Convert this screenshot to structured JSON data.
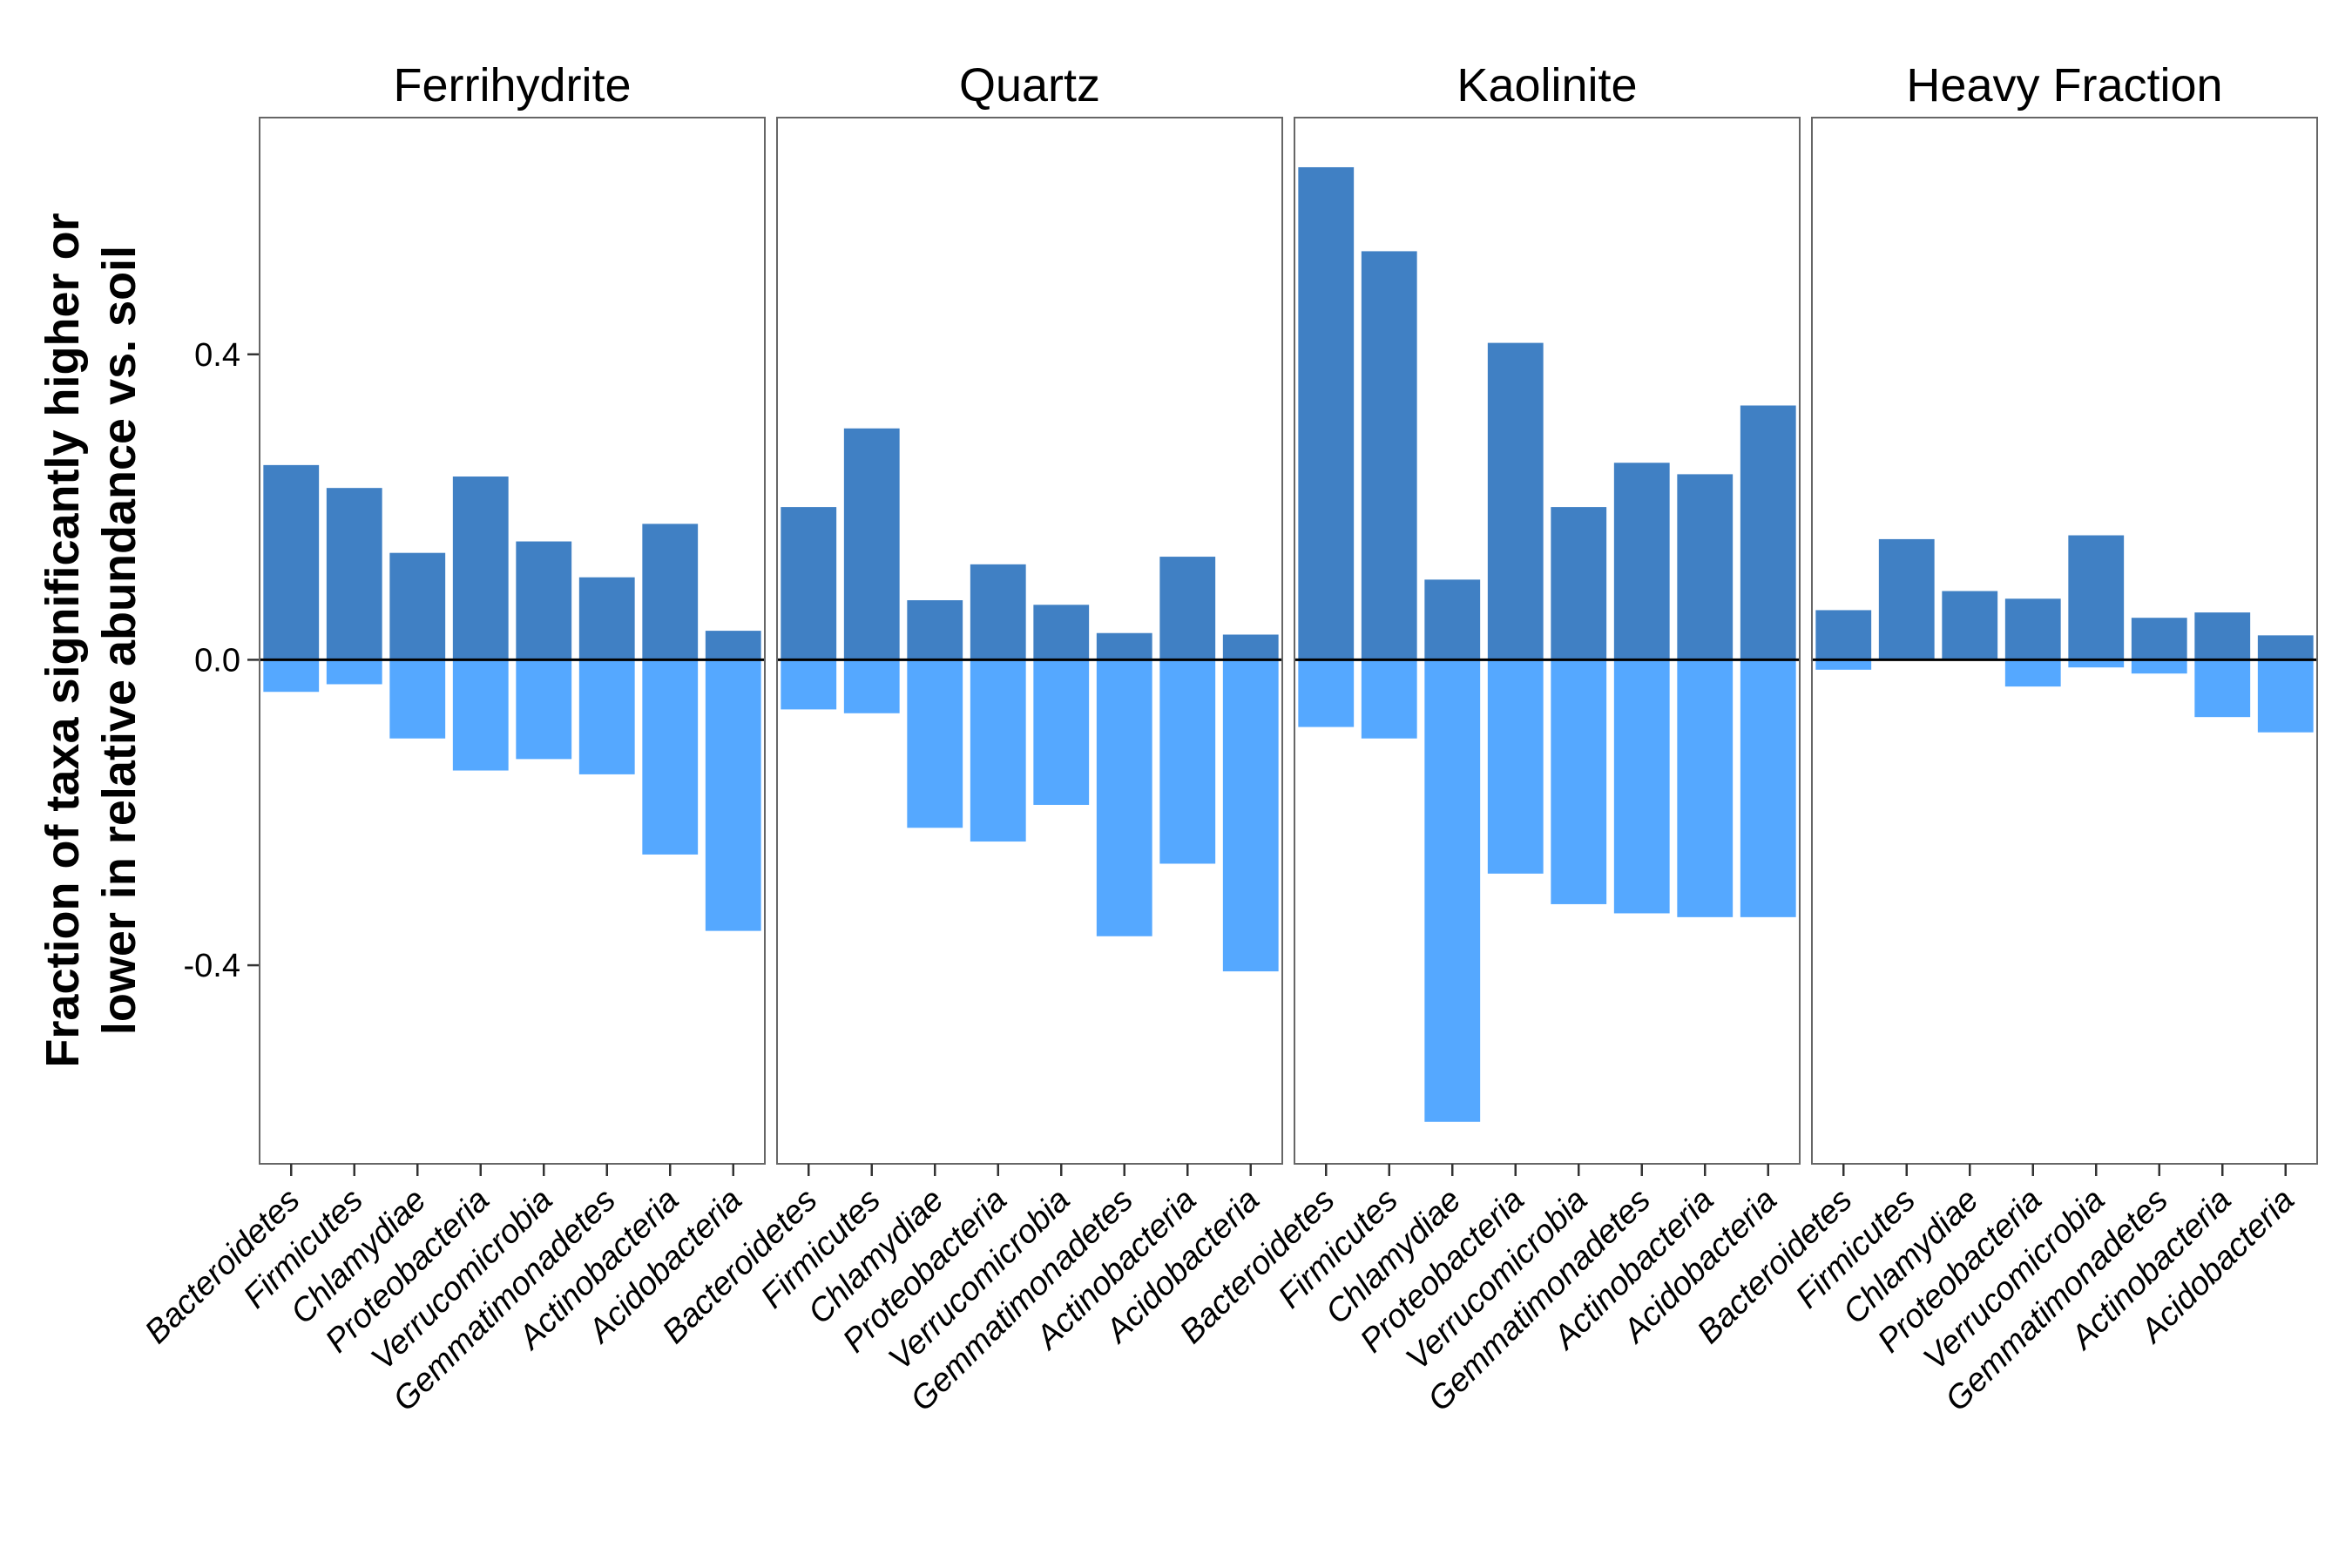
{
  "chart_data": {
    "type": "bar",
    "ylabel_lines": [
      "Fraction of taxa significantly higher or",
      "lower in relative abundance vs. soil"
    ],
    "xlabel": "",
    "ylim": [
      -0.66,
      0.71
    ],
    "yticks": [
      0.4,
      0.0,
      -0.4
    ],
    "ytick_labels": [
      "0.4",
      "0.0",
      "-0.4"
    ],
    "grid": false,
    "legend": "none",
    "colors": {
      "higher": "#4080C4",
      "lower": "#55A8FF"
    },
    "categories": [
      "Bacteroidetes",
      "Firmicutes",
      "Chlamydiae",
      "Proteobacteria",
      "Verrucomicrobia",
      "Gemmatimonadetes",
      "Actinobacteria",
      "Acidobacteria"
    ],
    "panels": [
      {
        "title": "Ferrihydrite",
        "higher": [
          0.255,
          0.225,
          0.14,
          0.24,
          0.155,
          0.108,
          0.178,
          0.038
        ],
        "lower": [
          -0.042,
          -0.032,
          -0.103,
          -0.145,
          -0.13,
          -0.15,
          -0.255,
          -0.355
        ]
      },
      {
        "title": "Quartz",
        "higher": [
          0.2,
          0.303,
          0.078,
          0.125,
          0.072,
          0.035,
          0.135,
          0.033
        ],
        "lower": [
          -0.065,
          -0.07,
          -0.22,
          -0.238,
          -0.19,
          -0.362,
          -0.267,
          -0.408
        ]
      },
      {
        "title": "Kaolinite",
        "higher": [
          0.645,
          0.535,
          0.105,
          0.415,
          0.2,
          0.258,
          0.243,
          0.333
        ],
        "lower": [
          -0.088,
          -0.103,
          -0.605,
          -0.28,
          -0.32,
          -0.332,
          -0.337,
          -0.337
        ]
      },
      {
        "title": "Heavy Fraction",
        "higher": [
          0.065,
          0.158,
          0.09,
          0.08,
          0.163,
          0.055,
          0.062,
          0.032
        ],
        "lower": [
          -0.013,
          0.0,
          0.0,
          -0.035,
          -0.01,
          -0.018,
          -0.075,
          -0.095
        ]
      }
    ]
  }
}
